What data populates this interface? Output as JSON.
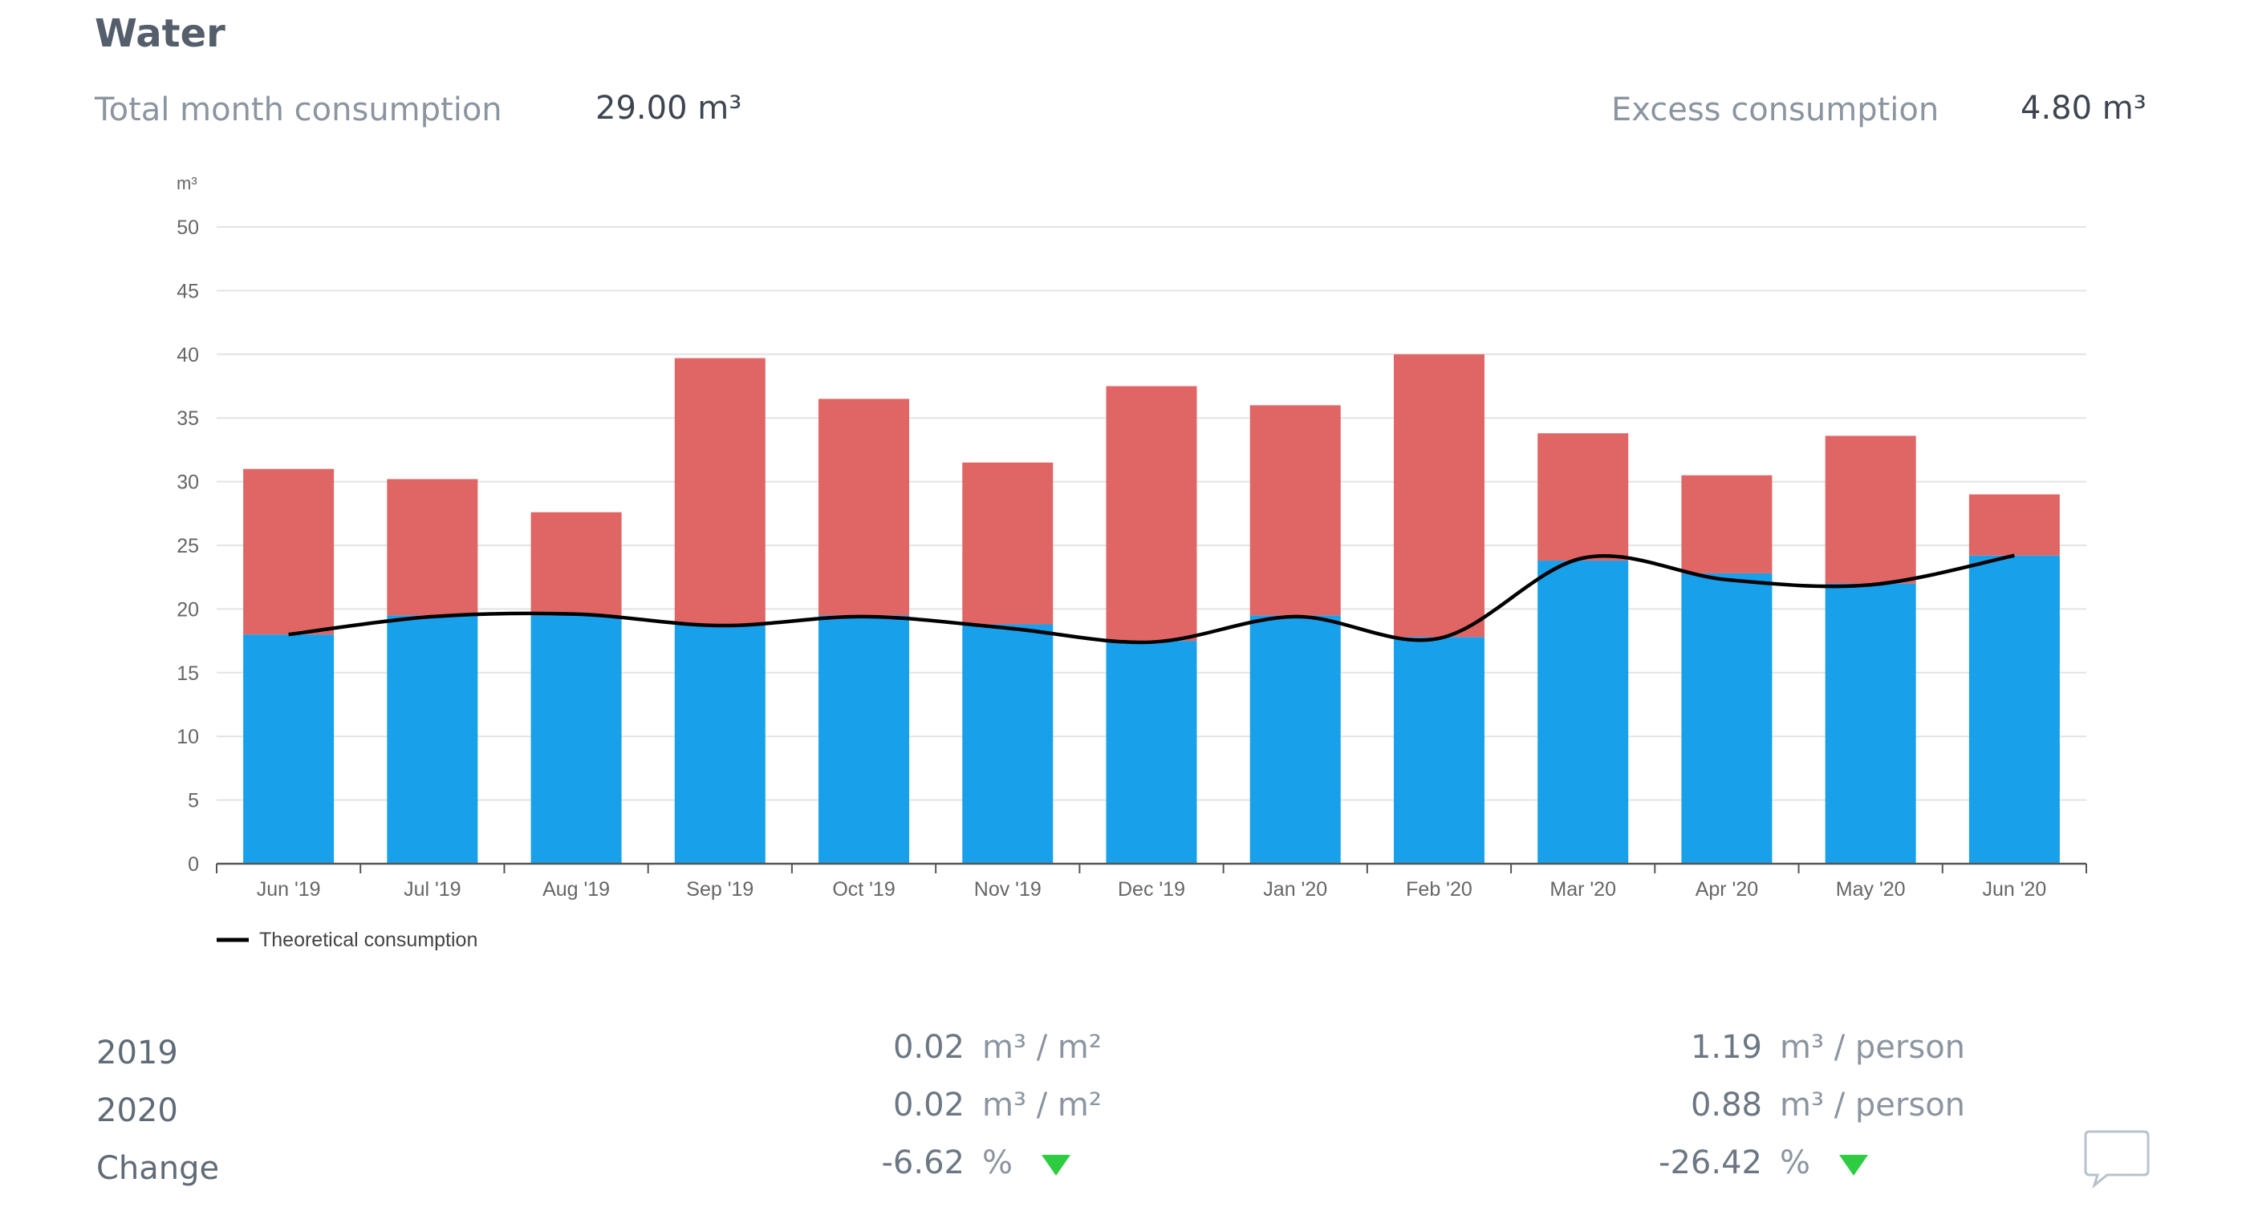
{
  "header": {
    "title": "Water",
    "total_label": "Total month consumption",
    "total_value": "29.00 m³",
    "excess_label": "Excess consumption",
    "excess_value": "4.80 m³"
  },
  "colors": {
    "actual_blue": "#19a0ea",
    "excess_red": "#e06565",
    "theoretical_line": "#000000",
    "grid": "#e3e3e3",
    "down_arrow": "#2ecc40"
  },
  "chart_data": {
    "type": "bar",
    "stacked": true,
    "y_unit": "m³",
    "ylim": [
      0,
      50
    ],
    "yticks": [
      0,
      5,
      10,
      15,
      20,
      25,
      30,
      35,
      40,
      45,
      50
    ],
    "grid": true,
    "categories": [
      "Jun '19",
      "Jul '19",
      "Aug '19",
      "Sep '19",
      "Oct '19",
      "Nov '19",
      "Dec '19",
      "Jan '20",
      "Feb '20",
      "Mar '20",
      "Apr '20",
      "May '20",
      "Jun '20"
    ],
    "series": [
      {
        "values": [
          18.0,
          19.5,
          19.5,
          18.8,
          19.5,
          18.8,
          17.5,
          19.5,
          17.8,
          23.8,
          22.8,
          22.0,
          24.2
        ],
        "color": "#19a0ea"
      },
      {
        "values": [
          13.0,
          10.7,
          8.1,
          20.9,
          17.0,
          12.7,
          20.0,
          16.5,
          22.2,
          10.0,
          7.7,
          11.6,
          4.8
        ],
        "color": "#e06565"
      }
    ],
    "totals": [
      31.0,
      30.2,
      27.6,
      39.7,
      36.5,
      31.5,
      37.5,
      36.0,
      40.0,
      33.8,
      30.5,
      33.6,
      29.0
    ],
    "line": {
      "name": "Theoretical consumption",
      "values": [
        18.0,
        19.4,
        19.6,
        18.7,
        19.4,
        18.5,
        17.4,
        19.4,
        17.7,
        24.0,
        22.3,
        21.9,
        24.2
      ],
      "color": "#000000"
    },
    "legend": "bottom-left"
  },
  "stats": {
    "rows": [
      {
        "label": "2019",
        "per_area": "0.02",
        "per_person": "1.19"
      },
      {
        "label": "2020",
        "per_area": "0.02",
        "per_person": "0.88"
      },
      {
        "label": "Change",
        "per_area": "-6.62",
        "per_person": "-26.42"
      }
    ],
    "area_unit": "m³ / m²",
    "person_unit": "m³ / person",
    "percent_unit": "%"
  },
  "icons": {
    "trend": "triangle-down-icon",
    "chat": "chat-bubble-icon"
  }
}
